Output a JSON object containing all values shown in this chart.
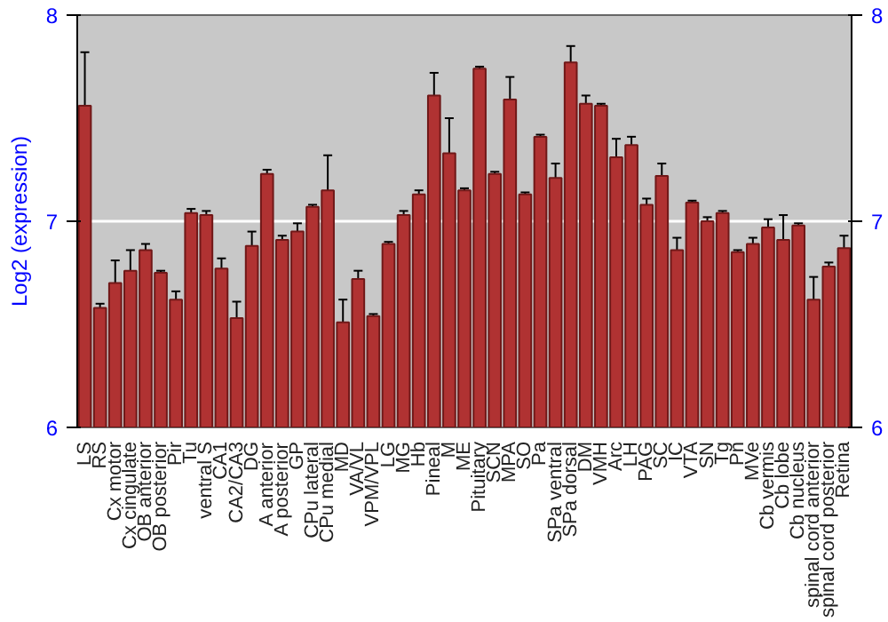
{
  "chart_data": {
    "type": "bar",
    "ylabel": "Log2 (expression)",
    "categories": [
      "LS",
      "RS",
      "Cx motor",
      "Cx cingulate",
      "OB anterior",
      "OB posterior",
      "Pir",
      "Tu",
      "ventral S",
      "CA1",
      "CA2/CA3",
      "DG",
      "A anterior",
      "A posterior",
      "GP",
      "CPu lateral",
      "CPu medial",
      "MD",
      "VA/VL",
      "VPM/VPL",
      "LG",
      "MG",
      "Hb",
      "Pineal",
      "M",
      "ME",
      "Pituitary",
      "SCN",
      "MPA",
      "SO",
      "Pa",
      "SPa ventral",
      "SPa dorsal",
      "DM",
      "VMH",
      "Arc",
      "LH",
      "PAG",
      "SC",
      "IC",
      "VTA",
      "SN",
      "Tg",
      "Pn",
      "MVe",
      "Cb vermis",
      "Cb lobe",
      "Cb nucleus",
      "spinal cord anterior",
      "spinal cord posterior",
      "Retina"
    ],
    "values": [
      7.56,
      6.58,
      6.7,
      6.76,
      6.86,
      6.75,
      6.62,
      7.04,
      7.03,
      6.77,
      6.53,
      6.88,
      7.23,
      6.91,
      6.95,
      7.07,
      7.15,
      6.51,
      6.72,
      6.54,
      6.89,
      7.03,
      7.13,
      7.61,
      7.33,
      7.15,
      7.74,
      7.23,
      7.59,
      7.13,
      7.41,
      7.21,
      7.77,
      7.57,
      7.56,
      7.31,
      7.37,
      7.08,
      7.22,
      6.86,
      7.09,
      7.0,
      7.04,
      6.85,
      6.89,
      6.97,
      6.91,
      6.98,
      6.62,
      6.78,
      6.87
    ],
    "errors": [
      0.26,
      0.02,
      0.11,
      0.1,
      0.03,
      0.01,
      0.04,
      0.02,
      0.02,
      0.05,
      0.08,
      0.07,
      0.02,
      0.02,
      0.04,
      0.01,
      0.17,
      0.11,
      0.04,
      0.01,
      0.01,
      0.02,
      0.02,
      0.11,
      0.17,
      0.01,
      0.01,
      0.01,
      0.11,
      0.01,
      0.01,
      0.07,
      0.08,
      0.04,
      0.01,
      0.09,
      0.04,
      0.03,
      0.06,
      0.06,
      0.01,
      0.02,
      0.01,
      0.01,
      0.03,
      0.04,
      0.12,
      0.01,
      0.11,
      0.02,
      0.06
    ],
    "color": "#b03232",
    "ylim": [
      6,
      8
    ],
    "yticks": [
      6,
      7,
      8
    ],
    "y2lim": [
      6,
      8
    ],
    "y2ticks": [
      6,
      7,
      8
    ],
    "grid": "y"
  }
}
